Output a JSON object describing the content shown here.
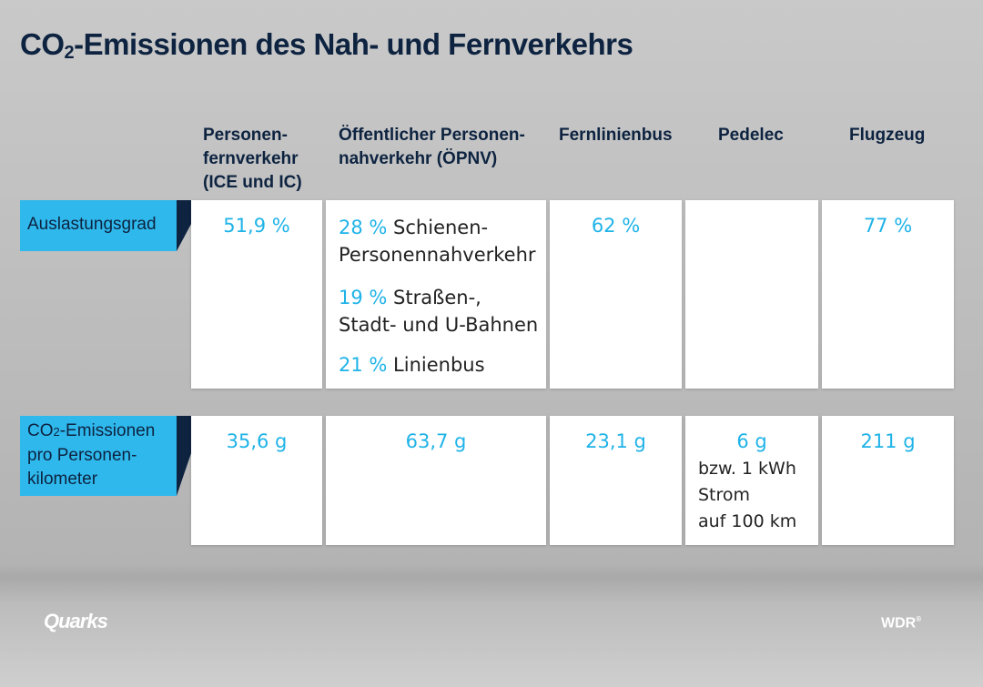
{
  "title": {
    "prefix": "CO",
    "sub": "2",
    "rest": "-Emissionen des Nah- und Fernverkehrs"
  },
  "chart_data": {
    "type": "table",
    "columns": [
      {
        "line1": "Personen-",
        "line2": "fernverkehr",
        "line3": "(ICE und IC)"
      },
      {
        "line1": "Öffentlicher Personen-",
        "line2": "nahverkehr (ÖPNV)"
      },
      {
        "line1": "Fernlinienbus"
      },
      {
        "line1": "Pedelec"
      },
      {
        "line1": "Flugzeug"
      }
    ],
    "rows": [
      {
        "label": "Auslastungsgrad",
        "cells": {
          "fernverkehr": "51,9 %",
          "oepnv": [
            {
              "value": "28 %",
              "text1": "Schienen-",
              "text2": "Personennahverkehr"
            },
            {
              "value": "19 %",
              "text1": "Straßen-,",
              "text2": "Stadt- und U-Bahnen"
            },
            {
              "value": "21 %",
              "text1": "Linienbus"
            }
          ],
          "fernlinienbus": "62 %",
          "pedelec": "",
          "flugzeug": "77 %"
        }
      },
      {
        "label_line1": "CO",
        "label_sub": "2",
        "label_line1_rest": "-Emissionen",
        "label_line2": "pro Personen-",
        "label_line3": "kilometer",
        "cells": {
          "fernverkehr": "35,6 g",
          "oepnv": "63,7 g",
          "fernlinienbus": "23,1 g",
          "pedelec": {
            "value": "6 g",
            "note1": "bzw. 1 kWh",
            "note2": "Strom",
            "note3": "auf 100 km"
          },
          "flugzeug": "211 g"
        }
      }
    ]
  },
  "footer": {
    "left_logo": "Quarks",
    "right_logo": "WDR",
    "right_mark": "®"
  },
  "colors": {
    "accent": "#1fb3e8",
    "label_bg": "#2fb8ec",
    "dark": "#0d2340"
  }
}
